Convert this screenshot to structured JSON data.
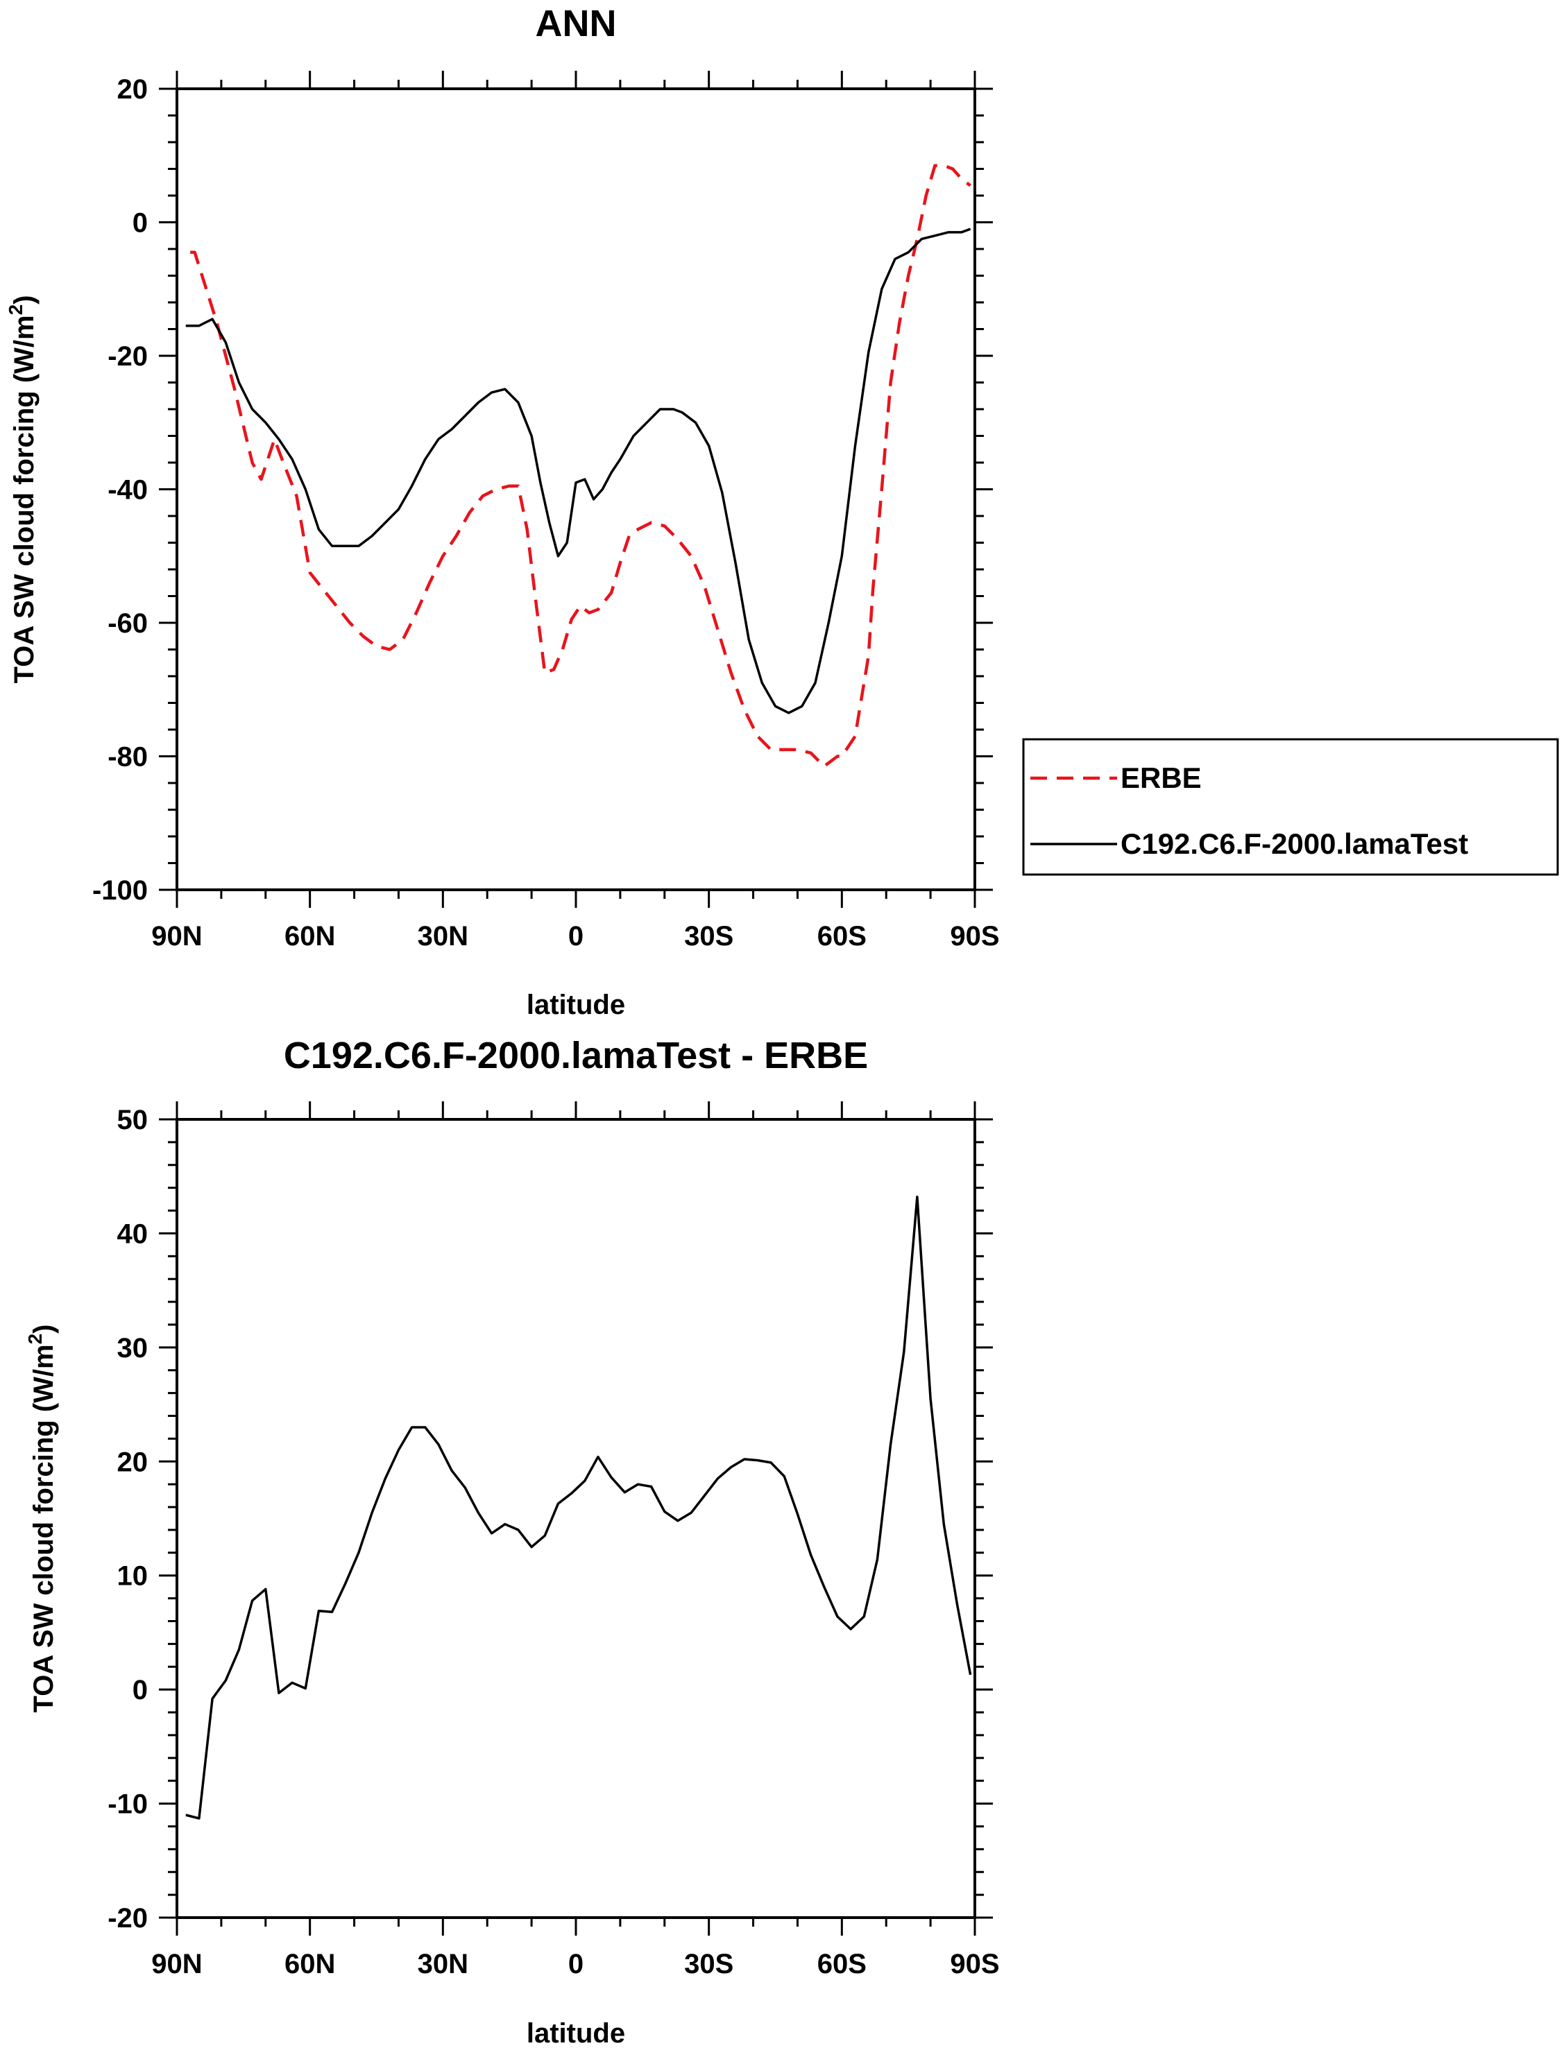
{
  "chart_data": [
    {
      "type": "line",
      "title": "ANN",
      "xlabel": "latitude",
      "ylabel": "TOA SW cloud forcing (W/m",
      "ylabel_sup": "2",
      "ylabel_close": ")",
      "xlim": [
        90,
        -90
      ],
      "ylim": [
        -100,
        20
      ],
      "x_ticks": [
        90,
        60,
        30,
        0,
        -30,
        -60,
        -90
      ],
      "x_tick_labels": [
        "90N",
        "60N",
        "30N",
        "0",
        "30S",
        "60S",
        "90S"
      ],
      "y_ticks": [
        -100,
        -80,
        -60,
        -40,
        -20,
        0,
        20
      ],
      "y_tick_labels": [
        "-100",
        "-80",
        "-60",
        "-40",
        "-20",
        "0",
        "20"
      ],
      "legend": {
        "position": "right",
        "entries": [
          "ERBE",
          "C192.C6.F-2000.lamaTest"
        ]
      },
      "series": [
        {
          "name": "ERBE",
          "color": "#e8141c",
          "dash": true,
          "x": [
            87,
            86,
            81,
            77,
            73,
            71,
            68,
            66,
            63,
            60,
            57,
            54,
            51,
            48,
            45,
            42,
            39,
            36,
            33,
            30,
            27,
            24,
            21,
            18,
            15,
            13,
            11,
            9,
            7,
            5,
            3,
            1,
            -1,
            -3,
            -5,
            -8,
            -10,
            -12,
            -14,
            -17,
            -20,
            -23,
            -26,
            -29,
            -32,
            -35,
            -38,
            -41,
            -44,
            -47,
            -50,
            -53,
            -56,
            -59,
            -60,
            -63,
            -66,
            -67,
            -69,
            -71,
            -73,
            -75,
            -77,
            -79,
            -81,
            -83,
            -85,
            -87,
            -89
          ],
          "y": [
            -4.5,
            -4.5,
            -15,
            -25,
            -36,
            -38.5,
            -32.5,
            -36,
            -41,
            -52.5,
            -55,
            -57.5,
            -60,
            -62,
            -63.5,
            -64,
            -62.5,
            -58.5,
            -54,
            -50,
            -47,
            -43.5,
            -41,
            -40,
            -39.5,
            -39.5,
            -46,
            -57,
            -67.5,
            -67,
            -64,
            -59.5,
            -57.5,
            -58.5,
            -58,
            -55.5,
            -51,
            -47,
            -46,
            -45,
            -45.5,
            -47.5,
            -50,
            -54.5,
            -61,
            -67.5,
            -73,
            -77,
            -79,
            -79,
            -79,
            -79.5,
            -81.5,
            -80,
            -80,
            -77,
            -65,
            -55,
            -40,
            -24,
            -15,
            -8,
            -2.5,
            4,
            8.5,
            8.5,
            8,
            6.5,
            5.5
          ]
        },
        {
          "name": "C192.C6.F-2000.lamaTest",
          "color": "#000000",
          "dash": false,
          "x": [
            88,
            85,
            82,
            79,
            76,
            73,
            70,
            67,
            64,
            61,
            58,
            55,
            52,
            49,
            46,
            43,
            40,
            37,
            34,
            31,
            28,
            25,
            22,
            19,
            16,
            13,
            10,
            8,
            6,
            4,
            2,
            0,
            -2,
            -4,
            -6,
            -8,
            -10,
            -13,
            -16,
            -19,
            -22,
            -24,
            -27,
            -30,
            -33,
            -36,
            -39,
            -42,
            -45,
            -48,
            -51,
            -54,
            -57,
            -60,
            -63,
            -66,
            -69,
            -72,
            -75,
            -78,
            -81,
            -84,
            -87,
            -89
          ],
          "y": [
            -15.5,
            -15.5,
            -14.5,
            -18,
            -24,
            -28,
            -30,
            -32.5,
            -35.5,
            -40,
            -46,
            -48.5,
            -48.5,
            -48.5,
            -47,
            -45,
            -43,
            -39.5,
            -35.5,
            -32.5,
            -31,
            -29,
            -27,
            -25.5,
            -25,
            -27,
            -32,
            -39,
            -45,
            -50,
            -48,
            -39,
            -38.5,
            -41.5,
            -40,
            -37.5,
            -35.5,
            -32,
            -30,
            -28,
            -28,
            -28.5,
            -30,
            -33.5,
            -40.5,
            -51,
            -62.5,
            -69,
            -72.5,
            -73.5,
            -72.5,
            -69,
            -60,
            -50,
            -33.5,
            -19.5,
            -10,
            -5.5,
            -4.5,
            -2.5,
            -2,
            -1.5,
            -1.5,
            -1
          ]
        }
      ]
    },
    {
      "type": "line",
      "title": "C192.C6.F-2000.lamaTest - ERBE",
      "xlabel": "latitude",
      "ylabel": "TOA SW cloud forcing (W/m",
      "ylabel_sup": "2",
      "ylabel_close": ")",
      "xlim": [
        90,
        -90
      ],
      "ylim": [
        -20,
        50
      ],
      "x_ticks": [
        90,
        60,
        30,
        0,
        -30,
        -60,
        -90
      ],
      "x_tick_labels": [
        "90N",
        "60N",
        "30N",
        "0",
        "30S",
        "60S",
        "90S"
      ],
      "y_ticks": [
        -20,
        -10,
        0,
        10,
        20,
        30,
        40,
        50
      ],
      "y_tick_labels": [
        "-20",
        "-10",
        "0",
        "10",
        "20",
        "30",
        "40",
        "50"
      ],
      "series": [
        {
          "color": "#000000",
          "dash": false,
          "x": [
            88,
            85,
            82,
            79,
            76,
            73,
            70,
            67,
            64,
            61,
            58,
            55,
            52,
            49,
            46,
            43,
            40,
            37,
            34,
            31,
            28,
            25,
            22,
            19,
            16,
            13,
            10,
            7,
            4,
            1,
            -2,
            -5,
            -8,
            -11,
            -14,
            -17,
            -20,
            -23,
            -26,
            -29,
            -32,
            -35,
            -38,
            -41,
            -44,
            -47,
            -50,
            -53,
            -56,
            -59,
            -62,
            -65,
            -68,
            -71,
            -74,
            -77,
            -80,
            -83,
            -86,
            -89
          ],
          "y": [
            -11,
            -11.3,
            -0.8,
            0.8,
            3.5,
            7.8,
            8.8,
            -0.3,
            0.6,
            0.1,
            6.9,
            6.8,
            9.3,
            12,
            15.5,
            18.5,
            21,
            23,
            23,
            21.5,
            19.2,
            17.7,
            15.5,
            13.7,
            14.5,
            14,
            12.5,
            13.5,
            16.3,
            17.2,
            18.3,
            20.4,
            18.6,
            17.3,
            18,
            17.8,
            15.6,
            14.8,
            15.5,
            17,
            18.5,
            19.5,
            20.2,
            20.1,
            19.9,
            18.7,
            15.4,
            11.8,
            9,
            6.4,
            5.3,
            6.4,
            11.4,
            21.5,
            29.6,
            43.2,
            25.5,
            14.5,
            7.5,
            1.3
          ]
        }
      ]
    }
  ]
}
